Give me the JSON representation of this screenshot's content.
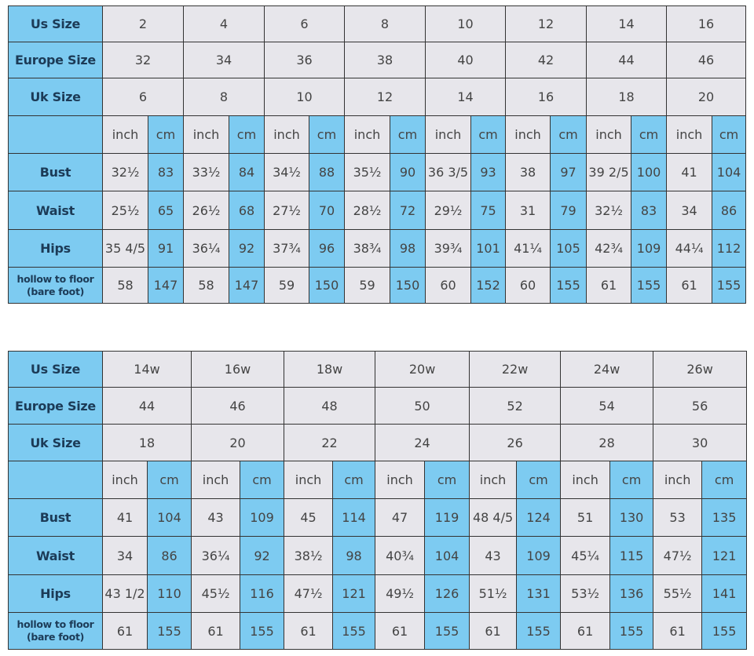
{
  "colors": {
    "label_bg": "#7dcbf1",
    "cm_bg": "#7dcbf1",
    "cell_bg": "#e7e6eb",
    "border": "#333333"
  },
  "tables": [
    {
      "size_rows": [
        {
          "label": "Us Size",
          "values": [
            "2",
            "4",
            "6",
            "8",
            "10",
            "12",
            "14",
            "16"
          ]
        },
        {
          "label": "Europe Size",
          "values": [
            "32",
            "34",
            "36",
            "38",
            "40",
            "42",
            "44",
            "46"
          ]
        },
        {
          "label": "Uk Size",
          "values": [
            "6",
            "8",
            "10",
            "12",
            "14",
            "16",
            "18",
            "20"
          ]
        }
      ],
      "unit_row": {
        "label": "",
        "inch": "inch",
        "cm": "cm"
      },
      "measure_rows": [
        {
          "label": "Bust",
          "values": [
            "32½",
            "83",
            "33½",
            "84",
            "34½",
            "88",
            "35½",
            "90",
            "36 3/5",
            "93",
            "38",
            "97",
            "39 2/5",
            "100",
            "41",
            "104"
          ]
        },
        {
          "label": "Waist",
          "values": [
            "25½",
            "65",
            "26½",
            "68",
            "27½",
            "70",
            "28½",
            "72",
            "29½",
            "75",
            "31",
            "79",
            "32½",
            "83",
            "34",
            "86"
          ]
        },
        {
          "label": "Hips",
          "values": [
            "35 4/5",
            "91",
            "36¼",
            "92",
            "37¾",
            "96",
            "38¾",
            "98",
            "39¾",
            "101",
            "41¼",
            "105",
            "42¾",
            "109",
            "44¼",
            "112"
          ]
        },
        {
          "label": "hollow to floor (bare foot)",
          "values": [
            "58",
            "147",
            "58",
            "147",
            "59",
            "150",
            "59",
            "150",
            "60",
            "152",
            "60",
            "155",
            "61",
            "155",
            "61",
            "155"
          ]
        }
      ]
    },
    {
      "size_rows": [
        {
          "label": "Us Size",
          "values": [
            "14w",
            "16w",
            "18w",
            "20w",
            "22w",
            "24w",
            "26w"
          ]
        },
        {
          "label": "Europe Size",
          "values": [
            "44",
            "46",
            "48",
            "50",
            "52",
            "54",
            "56"
          ]
        },
        {
          "label": "Uk Size",
          "values": [
            "18",
            "20",
            "22",
            "24",
            "26",
            "28",
            "30"
          ]
        }
      ],
      "unit_row": {
        "label": "",
        "inch": "inch",
        "cm": "cm"
      },
      "measure_rows": [
        {
          "label": "Bust",
          "values": [
            "41",
            "104",
            "43",
            "109",
            "45",
            "114",
            "47",
            "119",
            "48 4/5",
            "124",
            "51",
            "130",
            "53",
            "135"
          ]
        },
        {
          "label": "Waist",
          "values": [
            "34",
            "86",
            "36¼",
            "92",
            "38½",
            "98",
            "40¾",
            "104",
            "43",
            "109",
            "45¼",
            "115",
            "47½",
            "121"
          ]
        },
        {
          "label": "Hips",
          "values": [
            "43 1/2",
            "110",
            "45½",
            "116",
            "47½",
            "121",
            "49½",
            "126",
            "51½",
            "131",
            "53½",
            "136",
            "55½",
            "141"
          ]
        },
        {
          "label": "hollow to floor (bare foot)",
          "values": [
            "61",
            "155",
            "61",
            "155",
            "61",
            "155",
            "61",
            "155",
            "61",
            "155",
            "61",
            "155",
            "61",
            "155"
          ]
        }
      ]
    }
  ]
}
